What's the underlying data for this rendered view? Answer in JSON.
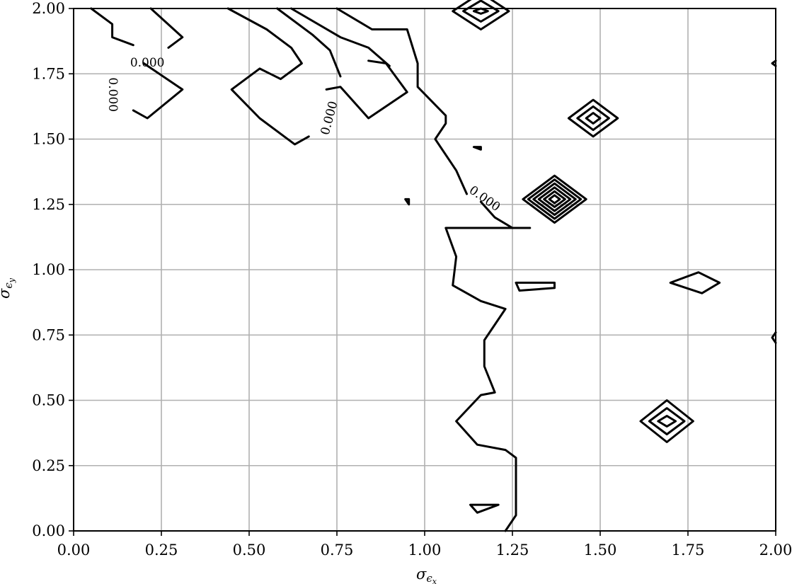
{
  "chart_data": {
    "type": "contour",
    "title": "",
    "xlabel": "σ",
    "xlabel_sub": "ϵ",
    "xlabel_subsub": "x",
    "ylabel": "σ",
    "ylabel_sub": "ϵ",
    "ylabel_subsub": "y",
    "xlim": [
      0,
      2
    ],
    "ylim": [
      0,
      2
    ],
    "xticks": [
      0,
      0.25,
      0.5,
      0.75,
      1.0,
      1.25,
      1.5,
      1.75,
      2.0
    ],
    "xtick_labels": [
      "0.00",
      "0.25",
      "0.50",
      "0.75",
      "1.00",
      "1.25",
      "1.50",
      "1.75",
      "2.00"
    ],
    "yticks": [
      0,
      0.25,
      0.5,
      0.75,
      1.0,
      1.25,
      1.5,
      1.75,
      2.0
    ],
    "ytick_labels": [
      "0.00",
      "0.25",
      "0.50",
      "0.75",
      "1.00",
      "1.25",
      "1.50",
      "1.75",
      "2.00"
    ],
    "grid": true,
    "line_color": "#000000",
    "grid_color": "#b0b0b0",
    "contour_labels": [
      {
        "text": "0.000",
        "x": 0.21,
        "y": 1.79,
        "rotation": 0
      },
      {
        "text": "0.000",
        "x": 0.11,
        "y": 1.67,
        "rotation": 90
      },
      {
        "text": "0.000",
        "x": 0.73,
        "y": 1.58,
        "rotation": -75
      },
      {
        "text": "0.000",
        "x": 1.17,
        "y": 1.27,
        "rotation": 35
      }
    ],
    "contours": [
      {
        "name": "boundary-main",
        "points": [
          [
            1.23,
            0.0
          ],
          [
            1.26,
            0.06
          ],
          [
            1.26,
            0.28
          ],
          [
            1.23,
            0.31
          ],
          [
            1.15,
            0.33
          ],
          [
            1.09,
            0.42
          ],
          [
            1.16,
            0.52
          ],
          [
            1.2,
            0.53
          ],
          [
            1.17,
            0.63
          ],
          [
            1.17,
            0.73
          ],
          [
            1.23,
            0.85
          ],
          [
            1.16,
            0.88
          ],
          [
            1.08,
            0.94
          ],
          [
            1.09,
            1.05
          ],
          [
            1.06,
            1.16
          ],
          [
            1.13,
            1.16
          ],
          [
            1.25,
            1.16
          ],
          [
            1.3,
            1.16
          ]
        ]
      },
      {
        "name": "boundary-upper",
        "points": [
          [
            1.25,
            1.16
          ],
          [
            1.2,
            1.2
          ],
          [
            1.16,
            1.26
          ]
        ]
      },
      {
        "name": "boundary-top",
        "points": [
          [
            1.12,
            1.29
          ],
          [
            1.09,
            1.38
          ],
          [
            1.03,
            1.5
          ],
          [
            1.06,
            1.56
          ],
          [
            1.06,
            1.59
          ],
          [
            0.98,
            1.7
          ],
          [
            0.98,
            1.79
          ],
          [
            0.95,
            1.92
          ],
          [
            0.85,
            1.92
          ],
          [
            0.75,
            2.0
          ]
        ]
      },
      {
        "name": "contour-left-1",
        "points": [
          [
            0.05,
            2.0
          ],
          [
            0.11,
            1.94
          ],
          [
            0.11,
            1.89
          ],
          [
            0.17,
            1.86
          ]
        ]
      },
      {
        "name": "contour-left-2",
        "points": [
          [
            0.22,
            2.0
          ],
          [
            0.31,
            1.89
          ],
          [
            0.27,
            1.85
          ]
        ]
      },
      {
        "name": "contour-left-3",
        "points": [
          [
            0.2,
            1.79
          ],
          [
            0.31,
            1.69
          ],
          [
            0.21,
            1.58
          ],
          [
            0.17,
            1.61
          ]
        ]
      },
      {
        "name": "contour-mid-1",
        "points": [
          [
            0.44,
            2.0
          ],
          [
            0.55,
            1.92
          ],
          [
            0.62,
            1.85
          ],
          [
            0.65,
            1.79
          ],
          [
            0.59,
            1.73
          ],
          [
            0.53,
            1.77
          ],
          [
            0.45,
            1.69
          ],
          [
            0.53,
            1.58
          ],
          [
            0.63,
            1.48
          ],
          [
            0.67,
            1.51
          ]
        ]
      },
      {
        "name": "contour-mid-2",
        "points": [
          [
            0.58,
            2.0
          ],
          [
            0.68,
            1.9
          ],
          [
            0.73,
            1.84
          ],
          [
            0.76,
            1.74
          ]
        ]
      },
      {
        "name": "contour-mid-3",
        "points": [
          [
            0.72,
            1.69
          ],
          [
            0.76,
            1.7
          ],
          [
            0.84,
            1.58
          ],
          [
            0.95,
            1.68
          ],
          [
            0.89,
            1.79
          ],
          [
            0.84,
            1.8
          ]
        ]
      },
      {
        "name": "contour-mid-4",
        "points": [
          [
            0.62,
            2.0
          ],
          [
            0.76,
            1.89
          ],
          [
            0.84,
            1.85
          ],
          [
            0.9,
            1.78
          ]
        ]
      },
      {
        "name": "small-ring-1",
        "closed": true,
        "points": [
          [
            1.13,
            0.1
          ],
          [
            1.21,
            0.1
          ],
          [
            1.15,
            0.07
          ]
        ]
      },
      {
        "name": "small-ring-2",
        "closed": true,
        "points": [
          [
            1.26,
            0.95
          ],
          [
            1.37,
            0.95
          ],
          [
            1.37,
            0.93
          ],
          [
            1.27,
            0.92
          ]
        ]
      },
      {
        "name": "small-ring-3",
        "closed": true,
        "points": [
          [
            1.7,
            0.95
          ],
          [
            1.78,
            0.99
          ],
          [
            1.84,
            0.95
          ],
          [
            1.79,
            0.91
          ]
        ]
      },
      {
        "name": "tiny-dot-1",
        "closed": true,
        "points": [
          [
            0.945,
            1.27
          ],
          [
            0.955,
            1.27
          ],
          [
            0.955,
            1.25
          ]
        ]
      },
      {
        "name": "tiny-dot-2",
        "closed": true,
        "points": [
          [
            1.14,
            1.47
          ],
          [
            1.16,
            1.47
          ],
          [
            1.16,
            1.46
          ]
        ]
      },
      {
        "name": "edge-right-1",
        "points": [
          [
            2.0,
            1.8
          ],
          [
            1.99,
            1.79
          ],
          [
            2.0,
            1.78
          ]
        ]
      },
      {
        "name": "edge-right-2",
        "points": [
          [
            2.0,
            0.76
          ],
          [
            1.99,
            0.74
          ],
          [
            2.0,
            0.72
          ]
        ]
      }
    ],
    "diamonds": [
      {
        "name": "diamond-top",
        "cx": 1.16,
        "cy": 1.99,
        "rx": [
          0.08,
          0.05,
          0.02
        ],
        "ry": [
          0.07,
          0.04,
          0.01
        ]
      },
      {
        "name": "diamond-1.47",
        "cx": 1.48,
        "cy": 1.58,
        "rx": [
          0.07,
          0.045,
          0.02
        ],
        "ry": [
          0.07,
          0.045,
          0.02
        ]
      },
      {
        "name": "diamond-1.37",
        "cx": 1.37,
        "cy": 1.27,
        "rx": [
          0.09,
          0.075,
          0.06,
          0.045,
          0.03,
          0.015
        ],
        "ry": [
          0.09,
          0.075,
          0.06,
          0.045,
          0.03,
          0.015
        ]
      },
      {
        "name": "diamond-1.69",
        "cx": 1.69,
        "cy": 0.42,
        "rx": [
          0.075,
          0.05,
          0.025
        ],
        "ry": [
          0.08,
          0.05,
          0.02
        ]
      }
    ]
  }
}
